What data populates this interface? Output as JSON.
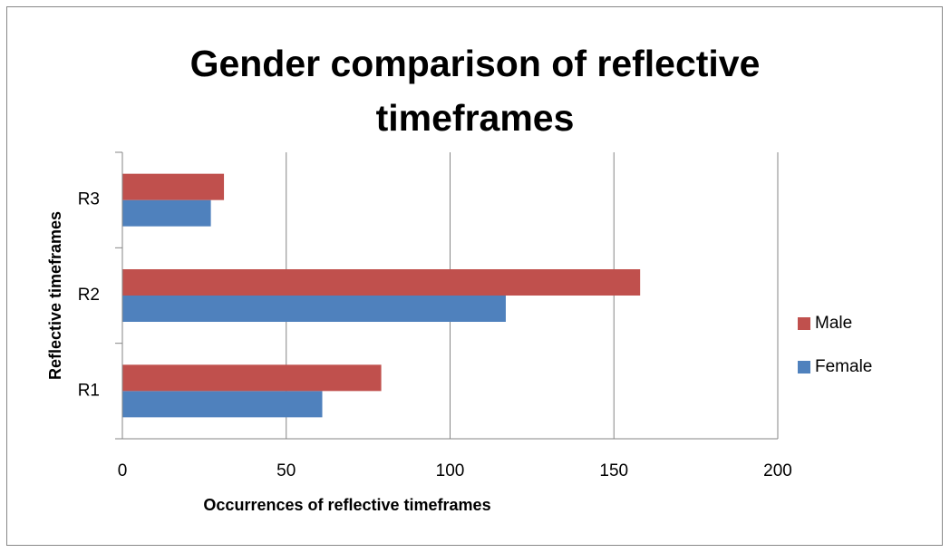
{
  "chart_data": {
    "type": "hbar",
    "title": "Gender comparison of reflective timeframes",
    "xlabel": "Occurrences of reflective timeframes",
    "ylabel": "Reflective timeframes",
    "categories": [
      "R1",
      "R2",
      "R3"
    ],
    "series": [
      {
        "name": "Female",
        "color": "#4f81bd",
        "values": [
          61,
          117,
          27
        ]
      },
      {
        "name": "Male",
        "color": "#c0504d",
        "values": [
          79,
          158,
          31
        ]
      }
    ],
    "xlim": [
      0,
      200
    ],
    "xticks": [
      0,
      50,
      100,
      150,
      200
    ],
    "grid": true,
    "legend": "right"
  }
}
